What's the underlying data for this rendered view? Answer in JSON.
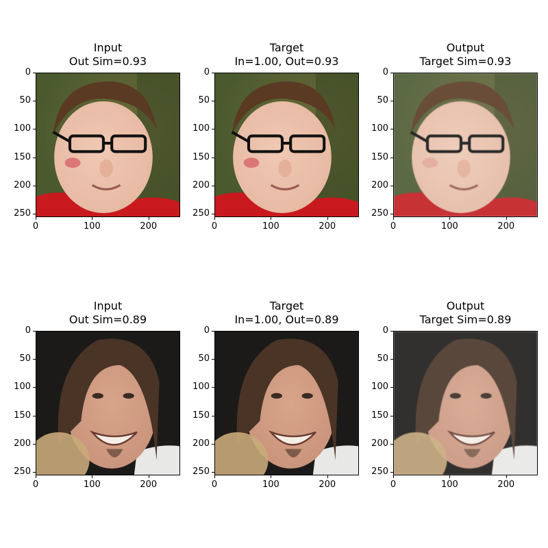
{
  "rows": [
    {
      "panels": [
        {
          "title_line1": "Input",
          "title_line2": "Out Sim=0.93",
          "image": "face-photo-glasses-man",
          "variant": "input"
        },
        {
          "title_line1": "Target",
          "title_line2": "In=1.00, Out=0.93",
          "image": "face-photo-glasses-man",
          "variant": "target"
        },
        {
          "title_line1": "Output",
          "title_line2": "Target Sim=0.93",
          "image": "face-photo-glasses-man-reconstructed",
          "variant": "output"
        }
      ]
    },
    {
      "panels": [
        {
          "title_line1": "Input",
          "title_line2": "Out Sim=0.89",
          "image": "face-photo-smiling-man",
          "variant": "input"
        },
        {
          "title_line1": "Target",
          "title_line2": "In=1.00, Out=0.89",
          "image": "face-photo-smiling-man",
          "variant": "target"
        },
        {
          "title_line1": "Output",
          "title_line2": "Target Sim=0.89",
          "image": "face-photo-smiling-man-reconstructed",
          "variant": "output"
        }
      ]
    }
  ],
  "axis": {
    "y_ticks": [
      "0",
      "50",
      "100",
      "150",
      "200",
      "250"
    ],
    "x_ticks": [
      "0",
      "100",
      "200"
    ]
  },
  "colors": {
    "row1_bg": "#4a5a2e",
    "row1_skin": "#e6b9a2",
    "row1_hair": "#5a3a22",
    "row1_shirt": "#c81a1e",
    "row2_bg": "#1c1a18",
    "row2_skin": "#c8937a",
    "row2_hair": "#4a3426",
    "row2_shirt": "#e8e8e6"
  }
}
